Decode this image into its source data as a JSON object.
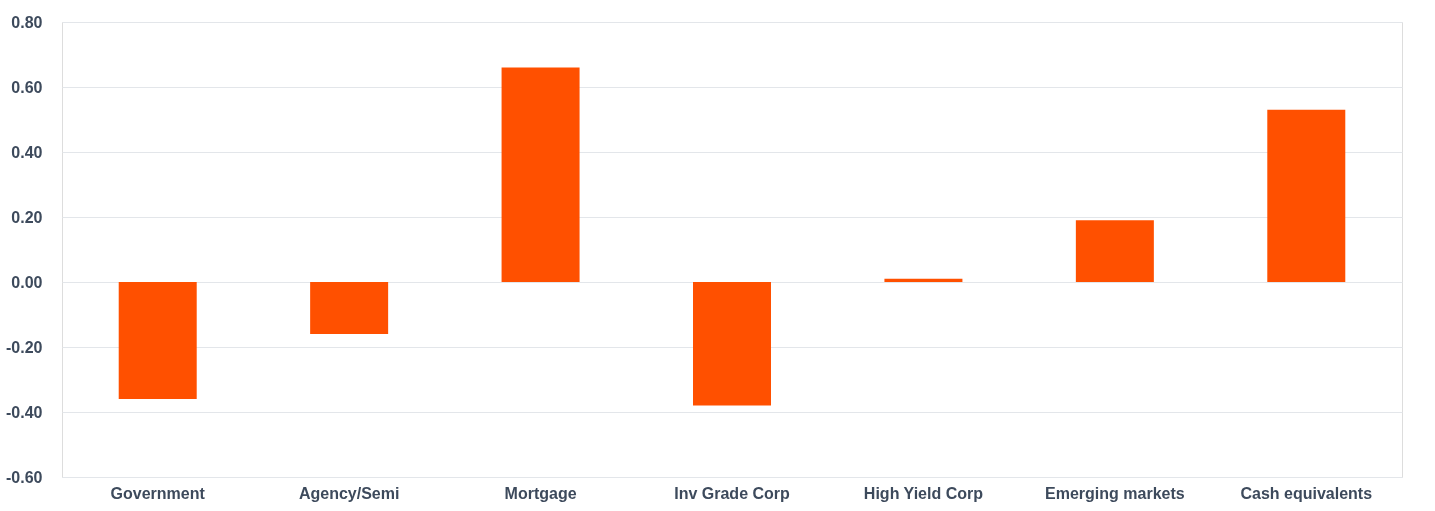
{
  "chart_data": {
    "type": "bar",
    "categories": [
      "Government",
      "Agency/Semi",
      "Mortgage",
      "Inv Grade Corp",
      "High Yield Corp",
      "Emerging markets",
      "Cash equivalents"
    ],
    "values": [
      -0.36,
      -0.16,
      0.66,
      -0.38,
      0.01,
      0.19,
      0.53
    ],
    "color": "#ff5000",
    "ylim": [
      -0.6,
      0.8
    ],
    "yticks": [
      {
        "value": -0.6,
        "label": "-0.60"
      },
      {
        "value": -0.4,
        "label": "-0.40"
      },
      {
        "value": -0.2,
        "label": "-0.20"
      },
      {
        "value": 0,
        "label": "0.00"
      },
      {
        "value": 0.2,
        "label": "0.20"
      },
      {
        "value": 0.4,
        "label": "0.40"
      },
      {
        "value": 0.6,
        "label": "0.60"
      },
      {
        "value": 0.8,
        "label": "0.80"
      }
    ],
    "grid": "y"
  }
}
